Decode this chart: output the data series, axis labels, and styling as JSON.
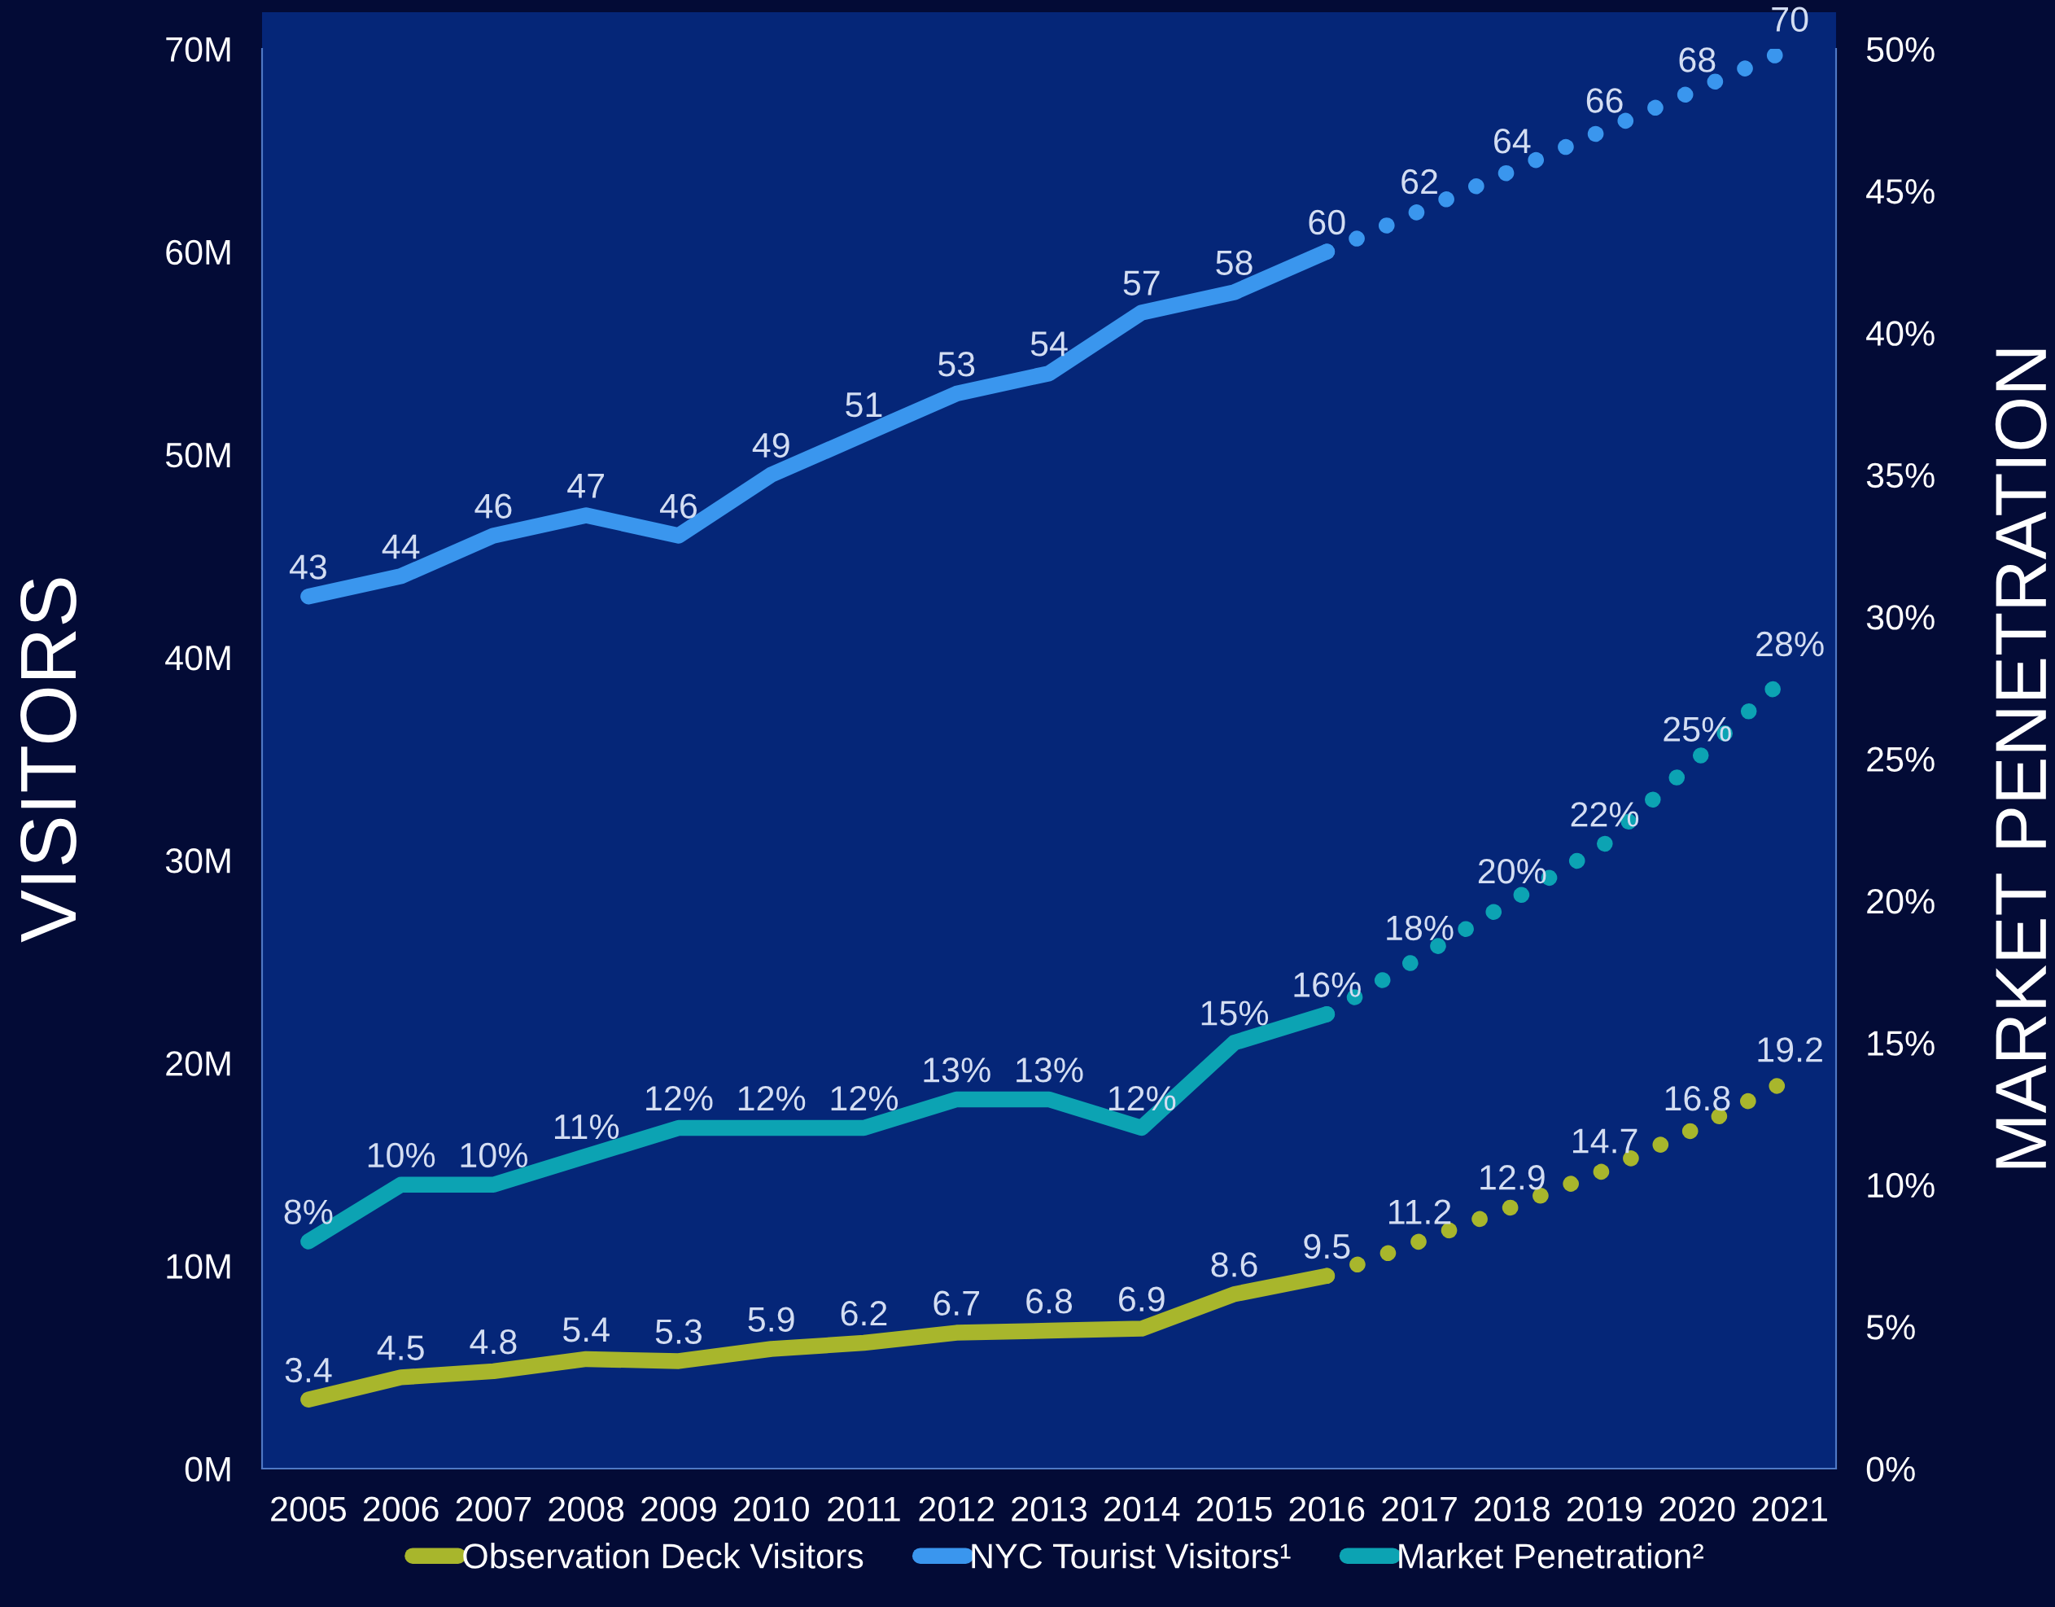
{
  "chart_data": {
    "type": "line",
    "categories": [
      "2005",
      "2006",
      "2007",
      "2008",
      "2009",
      "2010",
      "2011",
      "2012",
      "2013",
      "2014",
      "2015",
      "2016",
      "2017",
      "2018",
      "2019",
      "2020",
      "2021"
    ],
    "series": [
      {
        "name": "Observation Deck Visitors",
        "color": "#a8b62c",
        "line_style": "solid",
        "values": [
          3.4,
          4.5,
          4.8,
          5.4,
          5.3,
          5.9,
          6.2,
          6.7,
          6.8,
          6.9,
          8.6,
          9.5,
          null,
          null,
          null,
          null,
          null
        ],
        "value_labels": [
          "3.4",
          "4.5",
          "4.8",
          "5.4",
          "5.3",
          "5.9",
          "6.2",
          "6.7",
          "6.8",
          "6.9",
          "8.6",
          "9.5",
          null,
          null,
          null,
          null,
          null
        ]
      },
      {
        "color": "#a8b62c",
        "line_style": "dotted",
        "values": [
          null,
          null,
          null,
          null,
          null,
          null,
          null,
          null,
          null,
          null,
          null,
          9.5,
          11.2,
          12.9,
          14.7,
          16.8,
          19.2
        ],
        "value_labels": [
          null,
          null,
          null,
          null,
          null,
          null,
          null,
          null,
          null,
          null,
          null,
          null,
          "11.2",
          "12.9",
          "14.7",
          "16.8",
          "19.2"
        ]
      },
      {
        "name": "NYC Tourist Visitors¹",
        "color": "#3a96ee",
        "line_style": "solid",
        "values": [
          43,
          44,
          46,
          47,
          46,
          49,
          51,
          53,
          54,
          57,
          58,
          60,
          null,
          null,
          null,
          null,
          null
        ],
        "value_labels": [
          "43",
          "44",
          "46",
          "47",
          "46",
          "49",
          "51",
          "53",
          "54",
          "57",
          "58",
          "60",
          null,
          null,
          null,
          null,
          null
        ]
      },
      {
        "color": "#3a96ee",
        "line_style": "dotted",
        "values": [
          null,
          null,
          null,
          null,
          null,
          null,
          null,
          null,
          null,
          null,
          null,
          60,
          62,
          64,
          66,
          68,
          70
        ],
        "value_labels": [
          null,
          null,
          null,
          null,
          null,
          null,
          null,
          null,
          null,
          null,
          null,
          null,
          "62",
          "64",
          "66",
          "68",
          "70"
        ]
      },
      {
        "name": "Market Penetration²",
        "color": "#0ca3b3",
        "line_style": "solid",
        "axis": "y2",
        "values": [
          8,
          10,
          10,
          11,
          12,
          12,
          12,
          13,
          13,
          12,
          15,
          16,
          null,
          null,
          null,
          null,
          null
        ],
        "value_labels": [
          "8%",
          "10%",
          "10%",
          "11%",
          "12%",
          "12%",
          "12%",
          "13%",
          "13%",
          "12%",
          "15%",
          "16%",
          null,
          null,
          null,
          null,
          null
        ]
      },
      {
        "color": "#0ca3b3",
        "line_style": "dotted",
        "axis": "y2",
        "values": [
          null,
          null,
          null,
          null,
          null,
          null,
          null,
          null,
          null,
          null,
          null,
          16,
          18,
          20,
          22,
          25,
          28
        ],
        "value_labels": [
          null,
          null,
          null,
          null,
          null,
          null,
          null,
          null,
          null,
          null,
          null,
          null,
          "18%",
          "20%",
          "22%",
          "25%",
          "28%"
        ]
      }
    ],
    "ylabel": "VISITORS",
    "y2label": "MARKET PENETRATION",
    "ylim": [
      0,
      70
    ],
    "yticks": [
      {
        "value": 0,
        "label": "0M"
      },
      {
        "value": 10,
        "label": "10M"
      },
      {
        "value": 20,
        "label": "20M"
      },
      {
        "value": 30,
        "label": "30M"
      },
      {
        "value": 40,
        "label": "40M"
      },
      {
        "value": 50,
        "label": "50M"
      },
      {
        "value": 60,
        "label": "60M"
      },
      {
        "value": 70,
        "label": "70M"
      }
    ],
    "y2lim": [
      0,
      50
    ],
    "y2ticks": [
      {
        "value": 0,
        "label": "0%"
      },
      {
        "value": 5,
        "label": "5%"
      },
      {
        "value": 10,
        "label": "10%"
      },
      {
        "value": 15,
        "label": "15%"
      },
      {
        "value": 20,
        "label": "20%"
      },
      {
        "value": 25,
        "label": "25%"
      },
      {
        "value": 30,
        "label": "30%"
      },
      {
        "value": 35,
        "label": "35%"
      },
      {
        "value": 40,
        "label": "40%"
      },
      {
        "value": 45,
        "label": "45%"
      },
      {
        "value": 50,
        "label": "50%"
      }
    ],
    "legend": "bottom",
    "grid": false
  }
}
